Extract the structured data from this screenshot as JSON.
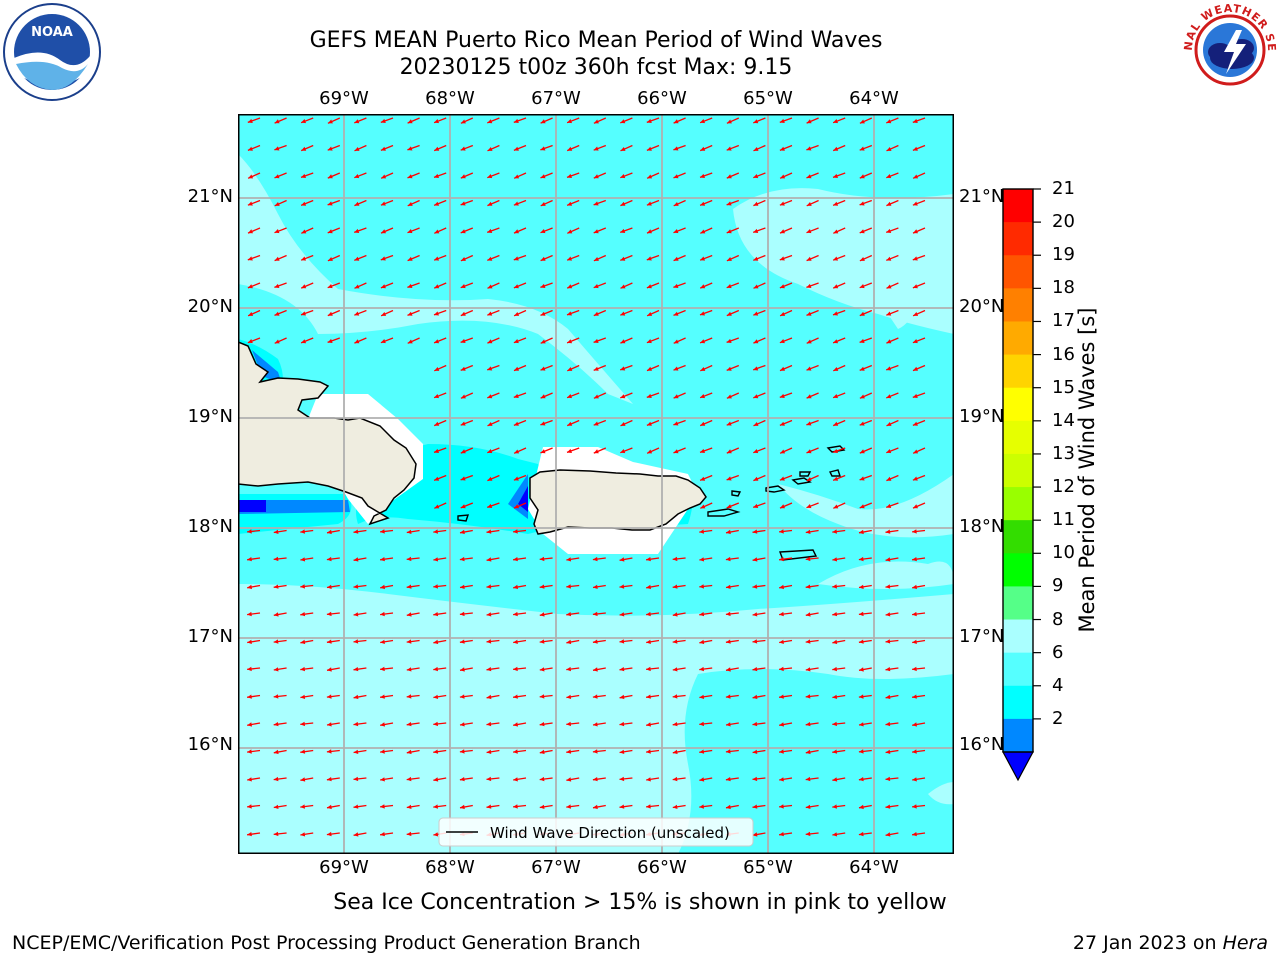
{
  "title": {
    "line1": "GEFS MEAN Puerto Rico Mean Period of Wind Waves",
    "line2": "20230125 t00z 360h fcst   Max: 9.15"
  },
  "logos": {
    "left": "NOAA",
    "right": "NATIONAL WEATHER SERVICE"
  },
  "map": {
    "lon_labels": [
      "69°W",
      "68°W",
      "67°W",
      "66°W",
      "65°W",
      "64°W"
    ],
    "lat_labels": [
      "21°N",
      "20°N",
      "19°N",
      "18°N",
      "17°N",
      "16°N"
    ],
    "legend_text": "Wind Wave Direction (unscaled)",
    "vector_color": "#ff0000",
    "wind_direction": "from east-northeast"
  },
  "colorbar": {
    "label": "Mean Period of Wind Waves [s]",
    "ticks": [
      "21",
      "20",
      "19",
      "18",
      "17",
      "16",
      "15",
      "14",
      "13",
      "12",
      "11",
      "10",
      "9",
      "8",
      "6",
      "4",
      "2"
    ],
    "colors": [
      "#ff0000",
      "#ff2a00",
      "#ff5500",
      "#ff8000",
      "#ffaa00",
      "#ffd400",
      "#ffff00",
      "#e6ff00",
      "#ccff00",
      "#99ff00",
      "#33dd00",
      "#00ff00",
      "#55ff88",
      "#aaffff",
      "#55ffff",
      "#00ffff",
      "#0088ff"
    ],
    "under_color": "#0000ff"
  },
  "notes": {
    "sea_ice": "Sea Ice Concentration > 15% is shown in pink to yellow"
  },
  "footer": {
    "left": "NCEP/EMC/Verification Post Processing Product Generation Branch",
    "date": "27 Jan 2023 on ",
    "host": "Hera"
  }
}
